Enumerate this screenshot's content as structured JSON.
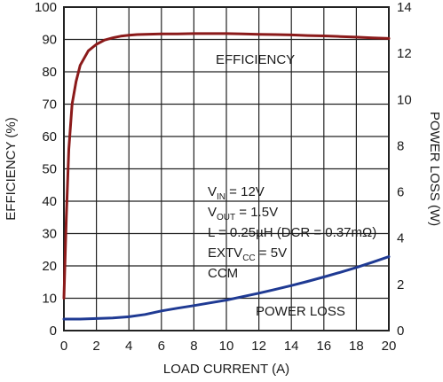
{
  "chart_data": {
    "type": "line",
    "xlabel": "LOAD CURRENT (A)",
    "ylabel_left": "EFFICIENCY (%)",
    "ylabel_right": "POWER LOSS (W)",
    "xlim": [
      0,
      20
    ],
    "ylim_left": [
      0,
      100
    ],
    "ylim_right": [
      0,
      14
    ],
    "grid": true,
    "x_ticks": [
      "0",
      "2",
      "4",
      "6",
      "8",
      "10",
      "12",
      "14",
      "16",
      "18",
      "20"
    ],
    "y_left_ticks": [
      "0",
      "10",
      "20",
      "30",
      "40",
      "50",
      "60",
      "70",
      "80",
      "90",
      "100"
    ],
    "y_right_ticks": [
      "0",
      "2",
      "4",
      "6",
      "8",
      "10",
      "12",
      "14"
    ],
    "series": [
      {
        "name": "EFFICIENCY",
        "axis": "left",
        "color": "#8b1a1a",
        "x": [
          0,
          0.15,
          0.3,
          0.5,
          0.75,
          1,
          1.5,
          2,
          2.5,
          3,
          3.5,
          4,
          4.5,
          5,
          6,
          7,
          8,
          9,
          10,
          11,
          12,
          13,
          14,
          15,
          16,
          17,
          18,
          19,
          20
        ],
        "y": [
          10,
          35,
          56,
          70,
          77,
          82,
          86.5,
          88.5,
          89.8,
          90.5,
          91.0,
          91.3,
          91.5,
          91.6,
          91.7,
          91.7,
          91.8,
          91.8,
          91.8,
          91.7,
          91.6,
          91.5,
          91.4,
          91.2,
          91.1,
          90.9,
          90.7,
          90.5,
          90.3
        ]
      },
      {
        "name": "POWER LOSS",
        "axis": "right",
        "color": "#1f3a93",
        "x": [
          0,
          1,
          2,
          3,
          4,
          5,
          6,
          7,
          8,
          9,
          10,
          11,
          12,
          13,
          14,
          15,
          16,
          17,
          18,
          19,
          20
        ],
        "y": [
          0.5,
          0.5,
          0.52,
          0.55,
          0.6,
          0.7,
          0.85,
          0.97,
          1.08,
          1.2,
          1.32,
          1.47,
          1.62,
          1.78,
          1.95,
          2.13,
          2.32,
          2.52,
          2.73,
          2.96,
          3.2
        ]
      }
    ],
    "annotations": {
      "efficiency_label": "EFFICIENCY",
      "power_loss_label": "POWER LOSS",
      "conditions": [
        {
          "main": "V",
          "sub": "IN",
          "rest": " = 12V"
        },
        {
          "main": "V",
          "sub": "OUT",
          "rest": " = 1.5V"
        },
        {
          "main": "L = 0.25µH (DCR = 0.37mΩ)",
          "sub": "",
          "rest": ""
        },
        {
          "main": "EXTV",
          "sub": "CC",
          "rest": " = 5V"
        },
        {
          "main": "CCM",
          "sub": "",
          "rest": ""
        }
      ]
    }
  }
}
